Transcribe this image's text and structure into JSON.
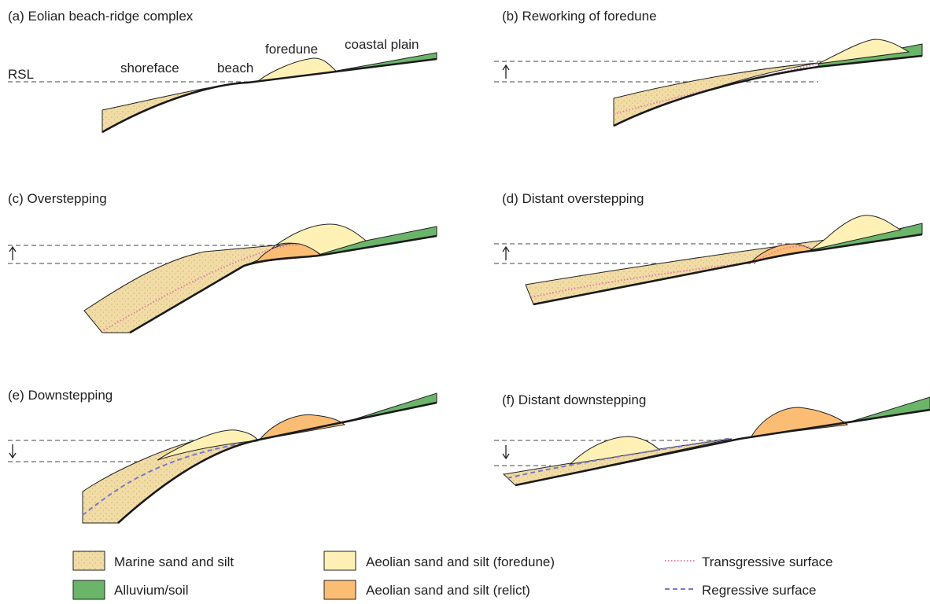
{
  "panels": [
    {
      "title": "(a) Eolian beach-ridge complex",
      "labels": [
        "shoreface",
        "beach",
        "foredune",
        "coastal plain",
        "RSL"
      ]
    },
    {
      "title": "(b) Reworking of foredune"
    },
    {
      "title": "(c) Overstepping"
    },
    {
      "title": "(d) Distant overstepping"
    },
    {
      "title": "(e) Downstepping"
    },
    {
      "title": "(f) Distant downstepping"
    }
  ],
  "legend": [
    "Marine sand and silt",
    "Alluvium/soil",
    "Aeolian sand and silt (foredune)",
    "Aeolian sand and silt (relict)",
    "Transgressive surface",
    "Regressive surface"
  ]
}
